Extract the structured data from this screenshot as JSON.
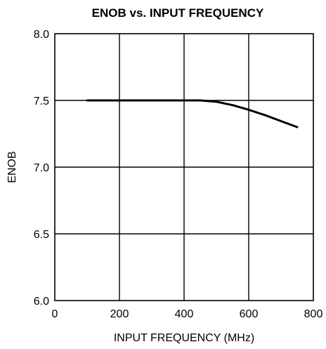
{
  "chart_data": {
    "type": "line",
    "title": "ENOB vs. INPUT FREQUENCY",
    "xlabel": "INPUT FREQUENCY (MHz)",
    "ylabel": "ENOB",
    "xlim": [
      0,
      800
    ],
    "ylim": [
      6.0,
      8.0
    ],
    "x_ticks": [
      0,
      200,
      400,
      600,
      800
    ],
    "x_tick_labels": [
      "0",
      "200",
      "400",
      "600",
      "800"
    ],
    "y_ticks": [
      6.0,
      6.5,
      7.0,
      7.5,
      8.0
    ],
    "y_tick_labels": [
      "6.0",
      "6.5",
      "7.0",
      "7.5",
      "8.0"
    ],
    "grid": true,
    "legend": "none",
    "colors": {
      "line": "#000000",
      "grid": "#000000",
      "background": "#ffffff"
    },
    "series": [
      {
        "x": [
          100,
          200,
          300,
          400,
          450,
          500,
          550,
          600,
          650,
          700,
          750
        ],
        "y": [
          7.5,
          7.5,
          7.5,
          7.5,
          7.5,
          7.49,
          7.465,
          7.43,
          7.39,
          7.345,
          7.3
        ]
      }
    ]
  }
}
